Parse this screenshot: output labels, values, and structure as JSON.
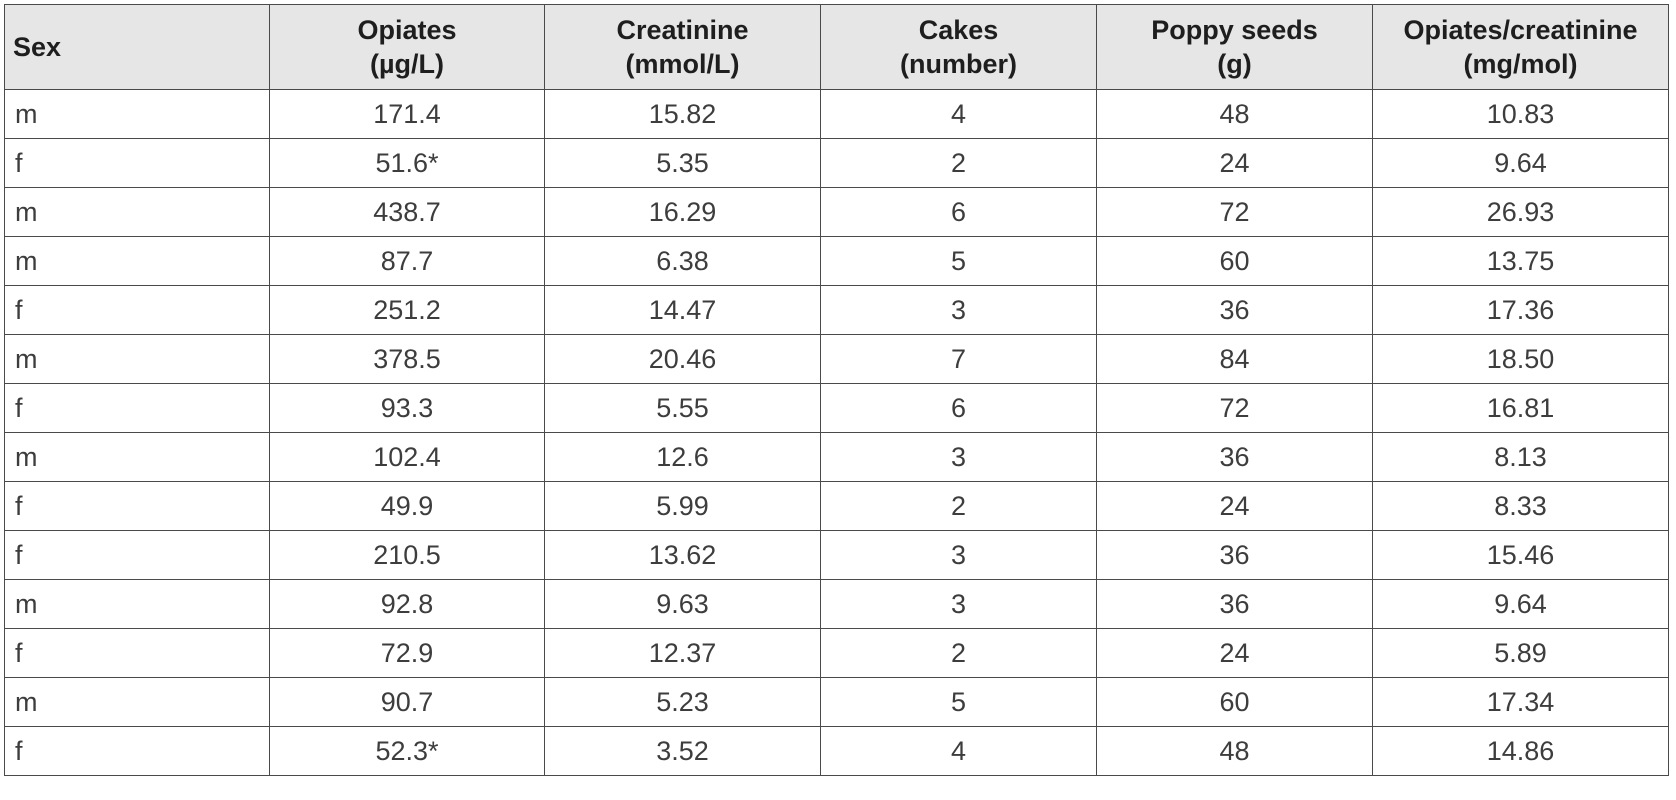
{
  "table": {
    "headers": [
      {
        "line1": "Sex",
        "line2": ""
      },
      {
        "line1": "Opiates",
        "line2": "(µg/L)"
      },
      {
        "line1": "Creatinine",
        "line2": "(mmol/L)"
      },
      {
        "line1": "Cakes",
        "line2": "(number)"
      },
      {
        "line1": "Poppy seeds",
        "line2": "(g)"
      },
      {
        "line1": "Opiates/creatinine",
        "line2": "(mg/mol)"
      }
    ],
    "rows": [
      [
        "m",
        "171.4",
        "15.82",
        "4",
        "48",
        "10.83"
      ],
      [
        "f",
        "51.6*",
        "5.35",
        "2",
        "24",
        "9.64"
      ],
      [
        "m",
        "438.7",
        "16.29",
        "6",
        "72",
        "26.93"
      ],
      [
        "m",
        "87.7",
        "6.38",
        "5",
        "60",
        "13.75"
      ],
      [
        "f",
        "251.2",
        "14.47",
        "3",
        "36",
        "17.36"
      ],
      [
        "m",
        "378.5",
        "20.46",
        "7",
        "84",
        "18.50"
      ],
      [
        "f",
        "93.3",
        "5.55",
        "6",
        "72",
        "16.81"
      ],
      [
        "m",
        "102.4",
        "12.6",
        "3",
        "36",
        "8.13"
      ],
      [
        "f",
        "49.9",
        "5.99",
        "2",
        "24",
        "8.33"
      ],
      [
        "f",
        "210.5",
        "13.62",
        "3",
        "36",
        "15.46"
      ],
      [
        "m",
        "92.8",
        "9.63",
        "3",
        "36",
        "9.64"
      ],
      [
        "f",
        "72.9",
        "12.37",
        "2",
        "24",
        "5.89"
      ],
      [
        "m",
        "90.7",
        "5.23",
        "5",
        "60",
        "17.34"
      ],
      [
        "f",
        "52.3*",
        "3.52",
        "4",
        "48",
        "14.86"
      ]
    ]
  }
}
